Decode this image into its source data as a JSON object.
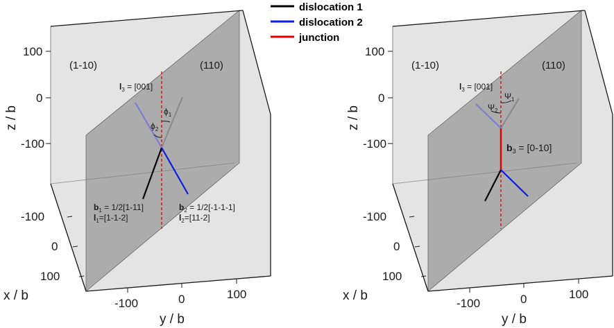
{
  "legend": [
    {
      "label": "dislocation 1",
      "color": "#000000"
    },
    {
      "label": "dislocation 2",
      "color": "#0a1ee6"
    },
    {
      "label": "junction",
      "color": "#e00000"
    }
  ],
  "panels": [
    {
      "axes": {
        "z_label": "z / b",
        "x_label": "x / b",
        "y_label": "y / b",
        "z_ticks": [
          "100",
          "0",
          "-100"
        ],
        "x_ticks": [
          "-100",
          "0",
          "100"
        ],
        "y_ticks": [
          "-100",
          "0",
          "100"
        ]
      },
      "planes": {
        "left": "(1-10)",
        "right": "(110)"
      },
      "l3": {
        "prefix": "l",
        "sub": "3",
        "text": " = [001]"
      },
      "angle_left": {
        "main": "ϕ",
        "sub": "2"
      },
      "angle_right": {
        "main": "ϕ",
        "sub": "1"
      },
      "b1": {
        "prefix": "b",
        "sub": "1",
        "text": " = 1/2[1-11]"
      },
      "l1": {
        "prefix": "l",
        "sub": "1",
        "text": "=[1-1-2]"
      },
      "b2": {
        "prefix": "b",
        "sub": "2",
        "text": " = 1/2[-1-1-1]"
      },
      "l2": {
        "prefix": "l",
        "sub": "2",
        "text": "=[11-2]"
      }
    },
    {
      "axes": {
        "z_label": "z / b",
        "x_label": "x / b",
        "y_label": "y / b",
        "z_ticks": [
          "100",
          "0",
          "-100"
        ],
        "x_ticks": [
          "-100",
          "0",
          "100"
        ],
        "y_ticks": [
          "-100",
          "0",
          "100"
        ]
      },
      "planes": {
        "left": "(1-10)",
        "right": "(110)"
      },
      "l3": {
        "prefix": "l",
        "sub": "3",
        "text": " = [001]"
      },
      "angle_left": {
        "main": "Ψ",
        "sub": "2"
      },
      "angle_right": {
        "main": "Ψ",
        "sub": "1"
      },
      "b3": {
        "prefix": "b",
        "sub": "3",
        "text": " = [0-10]"
      }
    }
  ]
}
